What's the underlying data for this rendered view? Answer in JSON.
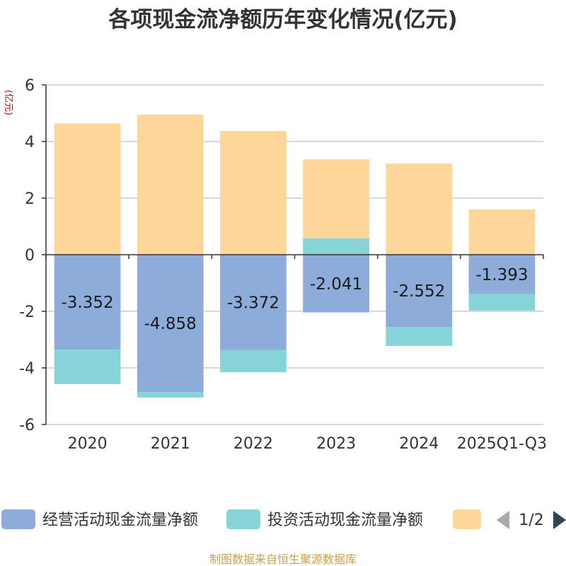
{
  "colors": {
    "operating": "#8EACD9",
    "investing": "#86D4D7",
    "financing": "#FFD699",
    "axis": "#333333",
    "grid": "#cccccc"
  },
  "chart_data": {
    "type": "bar",
    "stacked": true,
    "title": "各项现金流净额历年变化情况(亿元)",
    "ylabel": "(亿元)",
    "ylim": [
      -6,
      6
    ],
    "yticks": [
      6,
      4,
      2,
      0,
      -2,
      -4,
      -6
    ],
    "categories": [
      "2020",
      "2021",
      "2022",
      "2023",
      "2024",
      "2025Q1-Q3"
    ],
    "series": [
      {
        "name": "经营活动现金流量净额",
        "color_key": "operating",
        "values": [
          -3.352,
          -4.858,
          -3.372,
          -2.041,
          -2.552,
          -1.393
        ],
        "labels_shown": true
      },
      {
        "name": "投资活动现金流量净额",
        "color_key": "investing",
        "values": [
          -1.22,
          -0.19,
          -0.78,
          0.58,
          -0.67,
          -0.58
        ],
        "labels_shown": false
      },
      {
        "name": "",
        "color_key": "financing",
        "values": [
          4.64,
          4.95,
          4.37,
          2.79,
          3.22,
          1.6
        ],
        "labels_shown": false
      }
    ],
    "legend": {
      "page": "1/2"
    }
  },
  "source": "制图数据来自恒生聚源数据库"
}
